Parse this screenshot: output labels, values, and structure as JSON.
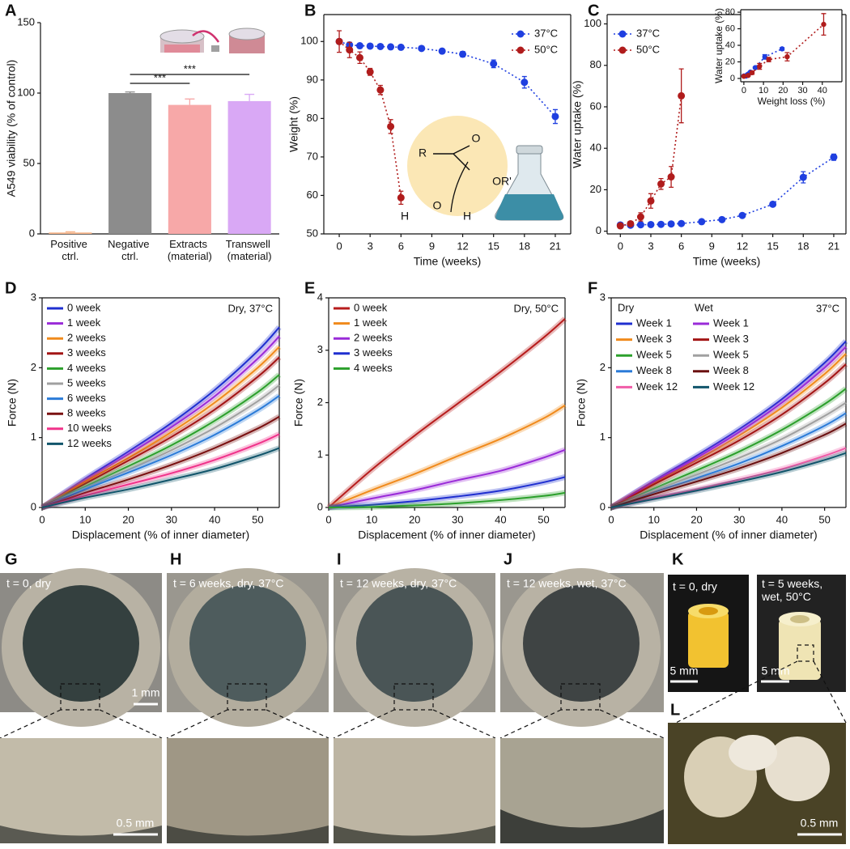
{
  "chart_data": [
    {
      "label": "A",
      "type": "bar",
      "categories": [
        "Positive ctrl.",
        "Negative ctrl.",
        "Extracts (material)",
        "Transwell (material)"
      ],
      "values": [
        1,
        100,
        91.6,
        94.3
      ],
      "errors": [
        0.5,
        0.8,
        4.2,
        4.8
      ],
      "colors": [
        "#f6b48a",
        "#8c8c8c",
        "#f7a8a8",
        "#d9a8f5"
      ],
      "ylabel": "A549 viability (% of control)",
      "ylim": [
        0,
        150
      ],
      "yticks": [
        0,
        50,
        100,
        150
      ],
      "significance": [
        "***",
        "***"
      ]
    },
    {
      "label": "B",
      "type": "line",
      "markers": true,
      "xlabel": "Time (weeks)",
      "ylabel": "Weight (%)",
      "xlim": [
        -1.5,
        22.5
      ],
      "ylim": [
        50,
        107
      ],
      "xticks": [
        0,
        3,
        6,
        9,
        12,
        15,
        18,
        21
      ],
      "yticks": [
        50,
        60,
        70,
        80,
        90,
        100
      ],
      "legend": "upper right",
      "series": [
        {
          "name": "37°C",
          "color": "#1f3fe0",
          "x": [
            0,
            1,
            2,
            3,
            4,
            5,
            6,
            8,
            10,
            12,
            15,
            18,
            21
          ],
          "values": [
            100,
            99.1,
            98.9,
            98.8,
            98.7,
            98.6,
            98.5,
            98.2,
            97.5,
            96.7,
            94.2,
            89.4,
            80.5
          ],
          "errors": [
            0.6,
            0.6,
            0.5,
            0.5,
            0.5,
            0.5,
            0.5,
            0.5,
            0.6,
            0.7,
            1,
            1.5,
            1.8
          ]
        },
        {
          "name": "50°C",
          "color": "#b01c1c",
          "x": [
            0,
            1,
            2,
            3,
            4,
            5,
            6
          ],
          "values": [
            100,
            97.8,
            95.8,
            92.1,
            87.4,
            77.9,
            59.4
          ],
          "errors": [
            2.8,
            2,
            1.5,
            0.9,
            1.2,
            1.8,
            1.7
          ]
        }
      ],
      "scheme_labels": [
        "O",
        "R",
        "OR'",
        "H",
        "O",
        "H"
      ]
    },
    {
      "label": "C",
      "type": "line",
      "markers": true,
      "xlabel": "Time (weeks)",
      "ylabel": "Water uptake (%)",
      "xlim": [
        -1.3,
        22.2
      ],
      "ylim": [
        -1.3,
        104.5
      ],
      "xticks": [
        0,
        3,
        6,
        9,
        12,
        15,
        18,
        21
      ],
      "yticks": [
        0,
        20,
        40,
        60,
        80,
        100
      ],
      "legend": "upper left",
      "series": [
        {
          "name": "37°C",
          "color": "#1f3fe0",
          "x": [
            0,
            1,
            2,
            3,
            4,
            5,
            6,
            8,
            10,
            12,
            15,
            18,
            21
          ],
          "values": [
            3,
            2.9,
            3.1,
            3.2,
            3.3,
            3.5,
            3.7,
            4.6,
            5.6,
            7.6,
            13,
            26,
            35.7
          ],
          "errors": [
            0.5,
            0.4,
            0.4,
            0.4,
            0.4,
            0.4,
            0.4,
            0.5,
            0.6,
            0.7,
            1,
            2.7,
            1.5
          ]
        },
        {
          "name": "50°C",
          "color": "#b01c1c",
          "x": [
            0,
            1,
            2,
            3,
            4,
            5,
            6
          ],
          "values": [
            2.6,
            3.6,
            6.9,
            14.6,
            22.8,
            26.2,
            65.3
          ],
          "errors": [
            0.6,
            1,
            2,
            3.5,
            2.6,
            5,
            13
          ]
        }
      ]
    },
    {
      "type": "line",
      "markers": true,
      "xlabel": "Weight loss (%)",
      "ylabel": "Water uptake (%)",
      "xlim": [
        -1.6,
        50
      ],
      "ylim": [
        -4,
        83
      ],
      "xticks": [
        0,
        10,
        20,
        30,
        40
      ],
      "yticks": [
        0,
        20,
        40,
        60,
        80
      ],
      "series": [
        {
          "color": "#1f3fe0",
          "x": [
            0,
            1,
            1.1,
            1.2,
            1.3,
            1.4,
            1.5,
            1.8,
            2.5,
            3.3,
            5.8,
            10.7,
            19.5
          ],
          "values": [
            3,
            2.9,
            3.1,
            3.2,
            3.3,
            3.5,
            3.7,
            4.6,
            5.6,
            7.6,
            13,
            26,
            35.7
          ],
          "errors": [
            0.5,
            0.4,
            0.4,
            0.4,
            0.4,
            0.4,
            0.4,
            0.5,
            0.6,
            0.7,
            1,
            2.7,
            1.5
          ]
        },
        {
          "color": "#b01c1c",
          "x": [
            0,
            2.2,
            4.2,
            8,
            12.7,
            22.1,
            40.7
          ],
          "values": [
            2.6,
            3.6,
            6.9,
            14.6,
            22.8,
            26.2,
            65.3
          ],
          "errors": [
            0.6,
            1,
            2,
            3.5,
            2.6,
            5,
            13
          ]
        }
      ]
    },
    {
      "label": "D",
      "type": "line",
      "smooth": true,
      "xlabel": "Displacement (% of inner diameter)",
      "ylabel": "Force (N)",
      "note": "Dry, 37°C",
      "xlim": [
        0,
        55
      ],
      "ylim": [
        0,
        3
      ],
      "xticks": [
        0,
        10,
        20,
        30,
        40,
        50
      ],
      "yticks": [
        0,
        1,
        2,
        3
      ],
      "legend": "upper left",
      "x": [
        0,
        10,
        20,
        30,
        40,
        50,
        55
      ],
      "series": [
        {
          "name": "0 week",
          "color": "#1f2fd0",
          "values": [
            0,
            0.41,
            0.8,
            1.21,
            1.68,
            2.24,
            2.58
          ]
        },
        {
          "name": "1 week",
          "color": "#9a2bd8",
          "values": [
            0,
            0.39,
            0.76,
            1.15,
            1.59,
            2.13,
            2.45
          ]
        },
        {
          "name": "2 weeks",
          "color": "#f08a1c",
          "values": [
            0,
            0.37,
            0.71,
            1.08,
            1.5,
            2,
            2.3
          ]
        },
        {
          "name": "3 weeks",
          "color": "#a31515",
          "values": [
            0,
            0.34,
            0.67,
            1.01,
            1.4,
            1.87,
            2.15
          ]
        },
        {
          "name": "4 weeks",
          "color": "#2ca02c",
          "values": [
            0,
            0.3,
            0.59,
            0.89,
            1.24,
            1.65,
            1.9
          ]
        },
        {
          "name": "5 weeks",
          "color": "#a0a0a0",
          "values": [
            0,
            0.28,
            0.54,
            0.82,
            1.14,
            1.52,
            1.75
          ]
        },
        {
          "name": "6 weeks",
          "color": "#2b7bd8",
          "values": [
            0,
            0.26,
            0.5,
            0.75,
            1.04,
            1.39,
            1.6
          ]
        },
        {
          "name": "8 weeks",
          "color": "#7a1010",
          "values": [
            0,
            0.21,
            0.4,
            0.61,
            0.85,
            1.13,
            1.3
          ]
        },
        {
          "name": "10 weeks",
          "color": "#f0338a",
          "values": [
            0,
            0.17,
            0.33,
            0.49,
            0.68,
            0.91,
            1.05
          ]
        },
        {
          "name": "12 weeks",
          "color": "#11556b",
          "values": [
            0,
            0.14,
            0.26,
            0.4,
            0.55,
            0.74,
            0.85
          ]
        }
      ]
    },
    {
      "label": "E",
      "type": "line",
      "smooth": true,
      "xlabel": "Displacement (% of inner diameter)",
      "ylabel": "Force (N)",
      "note": "Dry, 50°C",
      "xlim": [
        0,
        55
      ],
      "ylim": [
        0,
        4
      ],
      "xticks": [
        0,
        10,
        20,
        30,
        40,
        50
      ],
      "yticks": [
        0,
        1,
        2,
        3,
        4
      ],
      "legend": "upper left",
      "x": [
        0,
        10,
        20,
        30,
        40,
        50,
        55
      ],
      "series": [
        {
          "name": "0 week",
          "color": "#b71c1c",
          "values": [
            0,
            0.72,
            1.37,
            1.98,
            2.59,
            3.24,
            3.6
          ]
        },
        {
          "name": "1 week",
          "color": "#f08a1c",
          "values": [
            0,
            0.33,
            0.64,
            0.98,
            1.31,
            1.7,
            1.95
          ]
        },
        {
          "name": "2 weeks",
          "color": "#9a2bd8",
          "values": [
            0,
            0.17,
            0.33,
            0.52,
            0.7,
            0.95,
            1.1
          ]
        },
        {
          "name": "3 weeks",
          "color": "#1f2fd0",
          "values": [
            0,
            0.05,
            0.12,
            0.21,
            0.32,
            0.48,
            0.58
          ]
        },
        {
          "name": "4 weeks",
          "color": "#2ca02c",
          "values": [
            0,
            0.01,
            0.04,
            0.08,
            0.14,
            0.22,
            0.28
          ]
        }
      ]
    },
    {
      "label": "F",
      "type": "line",
      "smooth": true,
      "xlabel": "Displacement (% of inner diameter)",
      "ylabel": "Force (N)",
      "note": "37°C",
      "xlim": [
        0,
        55
      ],
      "ylim": [
        0,
        3
      ],
      "xticks": [
        0,
        10,
        20,
        30,
        40,
        50
      ],
      "yticks": [
        0,
        1,
        2,
        3
      ],
      "legend": "upper left",
      "x": [
        0,
        10,
        20,
        30,
        40,
        50,
        55
      ],
      "series_groups": [
        {
          "name": "Dry",
          "series": [
            {
              "name": "Week 1",
              "color": "#1f2fd0",
              "values": [
                0,
                0.38,
                0.74,
                1.12,
                1.55,
                2.07,
                2.38
              ]
            },
            {
              "name": "Week 3",
              "color": "#f08a1c",
              "values": [
                0,
                0.35,
                0.68,
                1.03,
                1.43,
                1.91,
                2.2
              ]
            },
            {
              "name": "Week 5",
              "color": "#2ca02c",
              "values": [
                0,
                0.27,
                0.53,
                0.8,
                1.11,
                1.48,
                1.7
              ]
            },
            {
              "name": "Week 8",
              "color": "#2b7bd8",
              "values": [
                0,
                0.22,
                0.42,
                0.63,
                0.88,
                1.17,
                1.35
              ]
            },
            {
              "name": "Week 12",
              "color": "#f05ca8",
              "values": [
                0,
                0.14,
                0.26,
                0.4,
                0.55,
                0.74,
                0.85
              ]
            }
          ]
        },
        {
          "name": "Wet",
          "series": [
            {
              "name": "Week 1",
              "color": "#9a2bd8",
              "values": [
                0,
                0.37,
                0.71,
                1.08,
                1.5,
                2,
                2.3
              ]
            },
            {
              "name": "Week 3",
              "color": "#a31515",
              "values": [
                0,
                0.33,
                0.64,
                0.96,
                1.33,
                1.78,
                2.05
              ]
            },
            {
              "name": "Week 5",
              "color": "#a0a0a0",
              "values": [
                0,
                0.24,
                0.47,
                0.71,
                0.98,
                1.31,
                1.5
              ]
            },
            {
              "name": "Week 8",
              "color": "#6b1010",
              "values": [
                0,
                0.19,
                0.37,
                0.56,
                0.78,
                1.04,
                1.2
              ]
            },
            {
              "name": "Week 12",
              "color": "#11556b",
              "values": [
                0,
                0.12,
                0.24,
                0.37,
                0.51,
                0.68,
                0.78
              ]
            }
          ]
        }
      ]
    }
  ],
  "photos": [
    {
      "label": "G",
      "images": [
        {
          "caption": "t = 0, dry",
          "scale_bar": "1 mm"
        },
        {
          "scale_bar": "0.5 mm"
        }
      ]
    },
    {
      "label": "H",
      "images": [
        {
          "caption": "t = 6 weeks, dry, 37°C"
        }
      ]
    },
    {
      "label": "I",
      "images": [
        {
          "caption": "t = 12 weeks, dry, 37°C"
        }
      ]
    },
    {
      "label": "J",
      "images": [
        {
          "caption": "t = 12 weeks, wet, 37°C"
        }
      ]
    },
    {
      "label": "K",
      "images": [
        {
          "caption": "t = 0, dry",
          "scale_bar": "5 mm"
        },
        {
          "caption": "t = 5 weeks, wet, 50°C",
          "scale_bar": "5 mm"
        }
      ]
    },
    {
      "label": "L",
      "images": [
        {
          "scale_bar": "0.5 mm"
        }
      ]
    }
  ]
}
